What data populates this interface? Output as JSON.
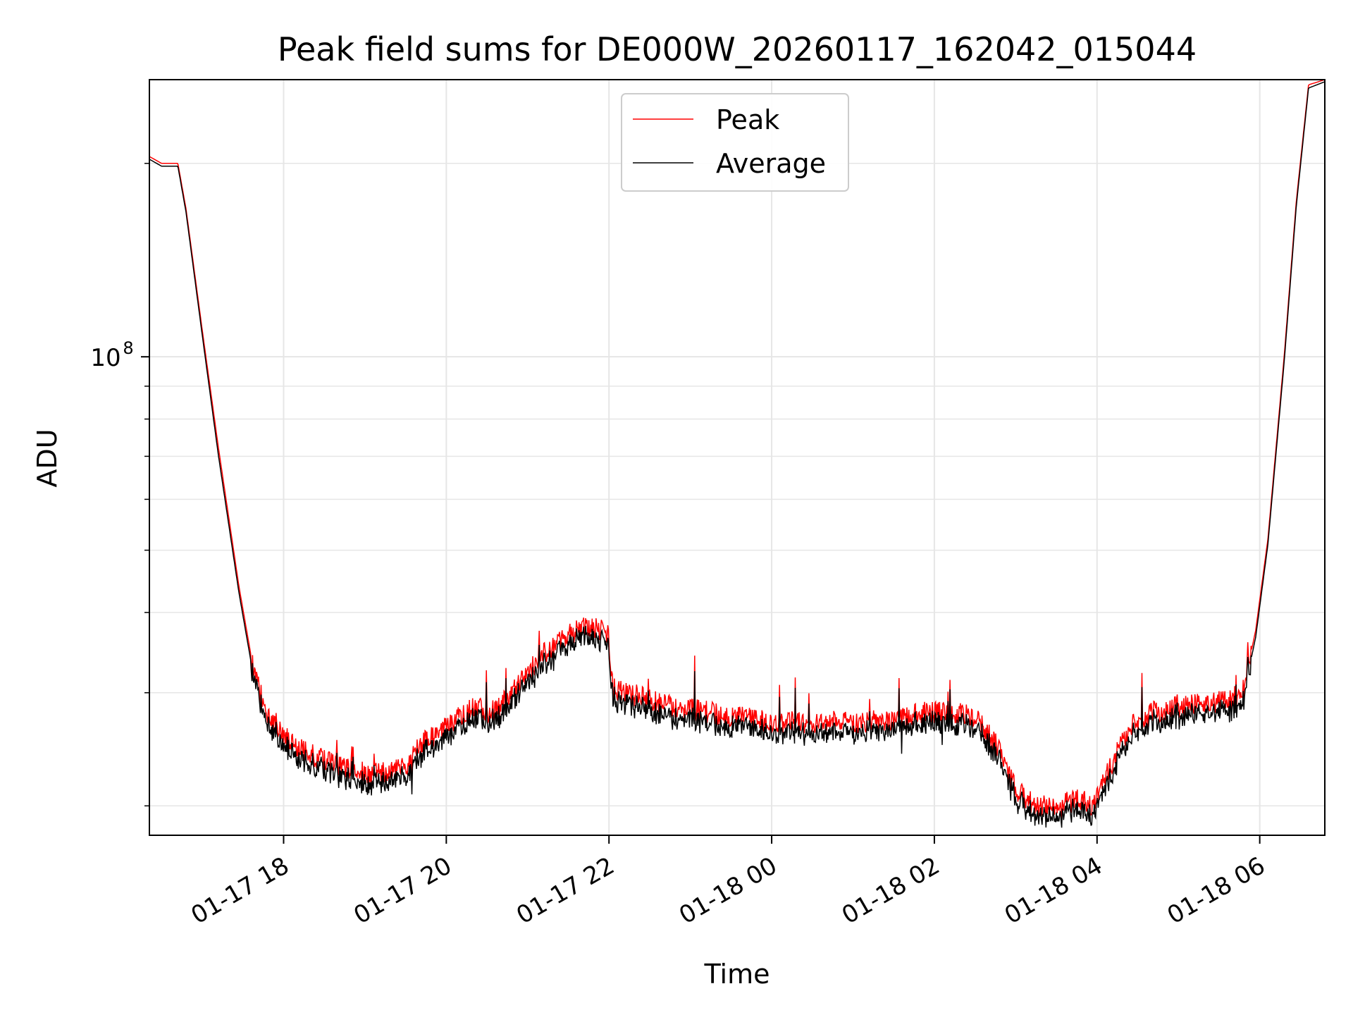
{
  "chart_data": {
    "type": "line",
    "title": "Peak field sums for DE000W_20260117_162042_015044",
    "xlabel": "Time",
    "ylabel": "ADU",
    "yscale": "log",
    "ylim": [
      18000000,
      270000000
    ],
    "xlim_hours": [
      16.35,
      30.8
    ],
    "x_unit": "hours since 2026-01-17 00:00",
    "x_ticks": [
      {
        "value": 18,
        "label": "01-17 18"
      },
      {
        "value": 20,
        "label": "01-17 20"
      },
      {
        "value": 22,
        "label": "01-17 22"
      },
      {
        "value": 24,
        "label": "01-18 00"
      },
      {
        "value": 26,
        "label": "01-18 02"
      },
      {
        "value": 28,
        "label": "01-18 04"
      },
      {
        "value": 30,
        "label": "01-18 06"
      }
    ],
    "y_major_ticks": [
      {
        "value": 100000000,
        "base": "10",
        "exp": "8"
      }
    ],
    "y_minor_ticks": [
      20000000,
      30000000,
      40000000,
      50000000,
      60000000,
      70000000,
      80000000,
      90000000,
      200000000
    ],
    "grid": true,
    "legend_position": "upper-center",
    "series": [
      {
        "name": "Peak",
        "color": "#ff0000",
        "x": [
          16.35,
          16.5,
          16.7,
          16.8,
          17.0,
          17.2,
          17.45,
          17.65,
          17.85,
          18.1,
          18.4,
          18.7,
          19.0,
          19.3,
          19.5,
          19.7,
          20.0,
          20.3,
          20.6,
          20.9,
          21.2,
          21.45,
          21.6,
          21.8,
          21.99,
          22.05,
          22.4,
          22.8,
          23.2,
          23.6,
          24.0,
          24.4,
          24.8,
          25.2,
          25.6,
          25.9,
          26.2,
          26.5,
          26.8,
          27.0,
          27.25,
          27.5,
          27.8,
          27.95,
          28.2,
          28.4,
          28.7,
          29.0,
          29.3,
          29.6,
          29.8,
          29.95,
          30.1,
          30.3,
          30.45,
          30.6,
          30.8
        ],
        "y": [
          205000000,
          200000000,
          200000000,
          170000000,
          110000000,
          72000000,
          44000000,
          31500000,
          27000000,
          25000000,
          23800000,
          23000000,
          22500000,
          22500000,
          23000000,
          25000000,
          26500000,
          28500000,
          28000000,
          31000000,
          34500000,
          36500000,
          37500000,
          38000000,
          37000000,
          30500000,
          29500000,
          28500000,
          28000000,
          27500000,
          27000000,
          27000000,
          27000000,
          27000000,
          27500000,
          28000000,
          28000000,
          27500000,
          24500000,
          21200000,
          20000000,
          20000000,
          20500000,
          20000000,
          23500000,
          26500000,
          28000000,
          28500000,
          29000000,
          29000000,
          30500000,
          37500000,
          52000000,
          100000000,
          175000000,
          265000000,
          270000000
        ]
      },
      {
        "name": "Average",
        "color": "#000000",
        "x": [
          16.35,
          16.5,
          16.7,
          16.8,
          17.0,
          17.2,
          17.45,
          17.65,
          17.85,
          18.1,
          18.4,
          18.7,
          19.0,
          19.3,
          19.5,
          19.7,
          20.0,
          20.3,
          20.6,
          20.9,
          21.2,
          21.45,
          21.6,
          21.8,
          21.99,
          22.05,
          22.4,
          22.8,
          23.2,
          23.6,
          24.0,
          24.4,
          24.8,
          25.2,
          25.6,
          25.9,
          26.2,
          26.5,
          26.8,
          27.0,
          27.25,
          27.5,
          27.8,
          27.95,
          28.2,
          28.4,
          28.7,
          29.0,
          29.3,
          29.6,
          29.8,
          29.95,
          30.1,
          30.3,
          30.45,
          30.6,
          30.8
        ],
        "y": [
          203000000,
          198000000,
          198000000,
          168000000,
          108000000,
          70000000,
          43000000,
          30800000,
          26400000,
          24400000,
          23200000,
          22400000,
          21900000,
          21900000,
          22400000,
          24400000,
          25800000,
          27800000,
          27300000,
          30200000,
          33700000,
          35600000,
          36600000,
          37000000,
          36000000,
          29700000,
          28700000,
          27700000,
          27300000,
          26800000,
          26300000,
          26300000,
          26300000,
          26300000,
          26800000,
          27300000,
          27300000,
          26800000,
          23900000,
          20700000,
          19500000,
          19500000,
          20000000,
          19500000,
          22900000,
          25800000,
          27300000,
          27800000,
          28300000,
          28300000,
          29700000,
          36600000,
          51000000,
          98000000,
          172000000,
          262000000,
          268000000
        ]
      }
    ]
  }
}
